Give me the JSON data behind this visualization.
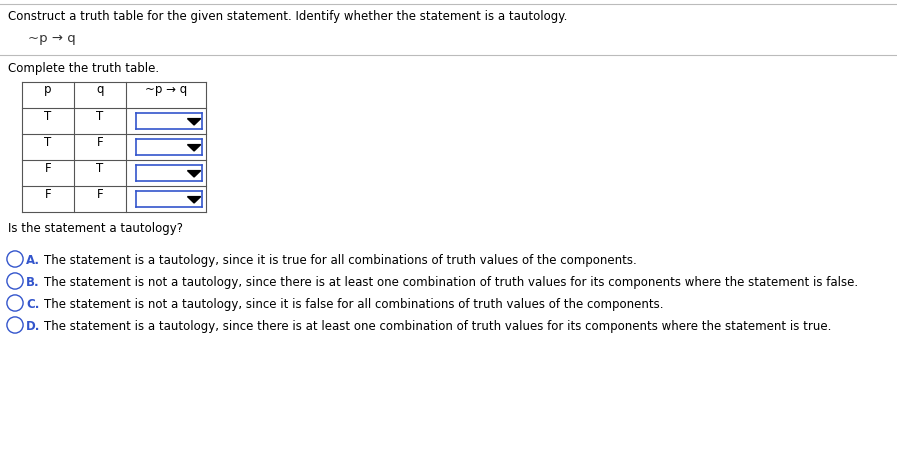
{
  "title": "Construct a truth table for the given statement. Identify whether the statement is a tautology.",
  "formula": "~p → q",
  "subtitle": "Complete the truth table.",
  "col_headers": [
    "p",
    "q",
    "~p → q"
  ],
  "rows": [
    [
      "T",
      "T"
    ],
    [
      "T",
      "F"
    ],
    [
      "F",
      "T"
    ],
    [
      "F",
      "F"
    ]
  ],
  "tautology_question": "Is the statement a tautology?",
  "options": [
    [
      "A.",
      "The statement is a tautology, since it is true for all combinations of truth values of the components."
    ],
    [
      "B.",
      "The statement is not a tautology, since there is at least one combination of truth values for its components where the statement is false."
    ],
    [
      "C.",
      "The statement is not a tautology, since it is false for all combinations of truth values of the components."
    ],
    [
      "D.",
      "The statement is a tautology, since there is at least one combination of truth values for its components where the statement is true."
    ]
  ],
  "background_color": "#ffffff",
  "text_color": "#000000",
  "table_border_color": "#555555",
  "dropdown_border_color": "#3355cc",
  "formula_color": "#333333",
  "option_label_color": "#3355cc",
  "top_line_color": "#bbbbbb",
  "separator_line_color": "#bbbbbb"
}
